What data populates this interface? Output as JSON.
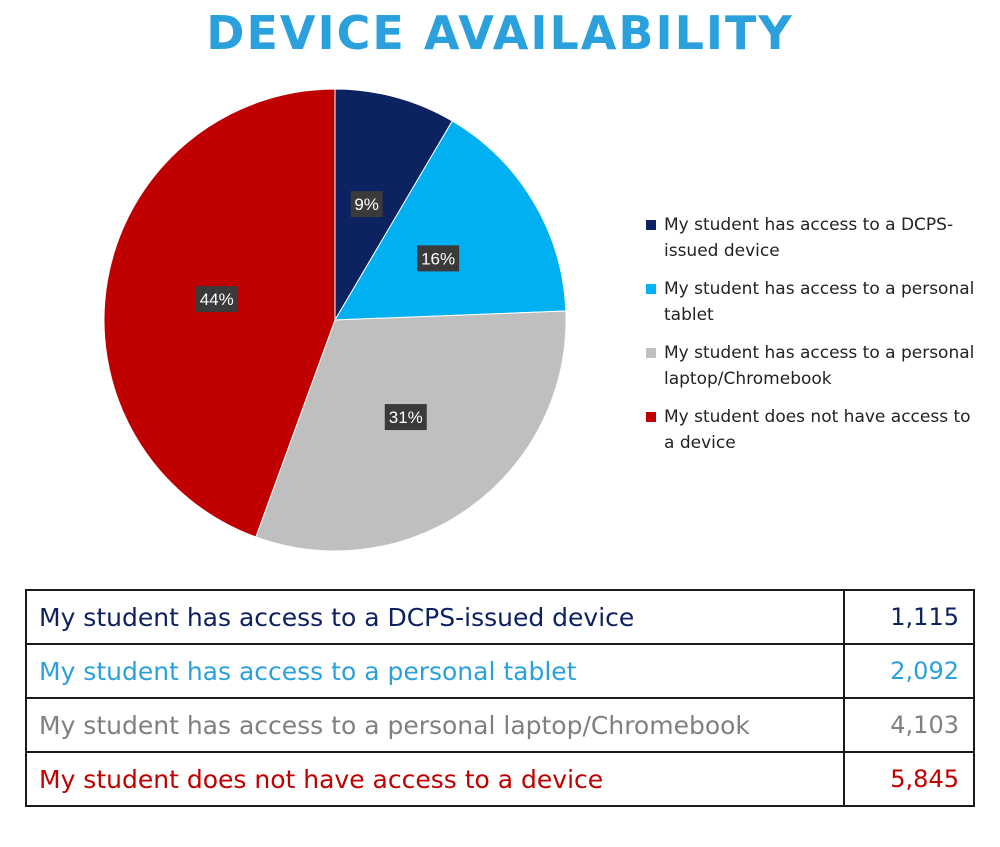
{
  "chart_data": {
    "type": "pie",
    "title": "DEVICE AVAILABILITY",
    "slices": [
      {
        "label": "My student has access to a DCPS-issued device",
        "value": 1115,
        "percent_label": "9%",
        "color": "#0d2260"
      },
      {
        "label": "My student has access to a personal tablet",
        "value": 2092,
        "percent_label": "16%",
        "color": "#00b0f0"
      },
      {
        "label": "My student has access to a personal laptop/Chromebook",
        "value": 4103,
        "percent_label": "31%",
        "color": "#bfbfbf"
      },
      {
        "label": "My student does not have access to a device",
        "value": 5845,
        "percent_label": "44%",
        "color": "#c00000"
      }
    ],
    "legend_position": "right"
  },
  "table": {
    "rows": [
      {
        "label": "My student has access to a DCPS-issued device",
        "count": "1,115",
        "color": "#0d2260"
      },
      {
        "label": "My student has access to a personal tablet",
        "count": "2,092",
        "color": "#2aa1dc"
      },
      {
        "label": "My student has access to a personal laptop/Chromebook",
        "count": "4,103",
        "color": "#808080"
      },
      {
        "label": "My student does not have access to a device",
        "count": "5,845",
        "color": "#c00000"
      }
    ]
  }
}
